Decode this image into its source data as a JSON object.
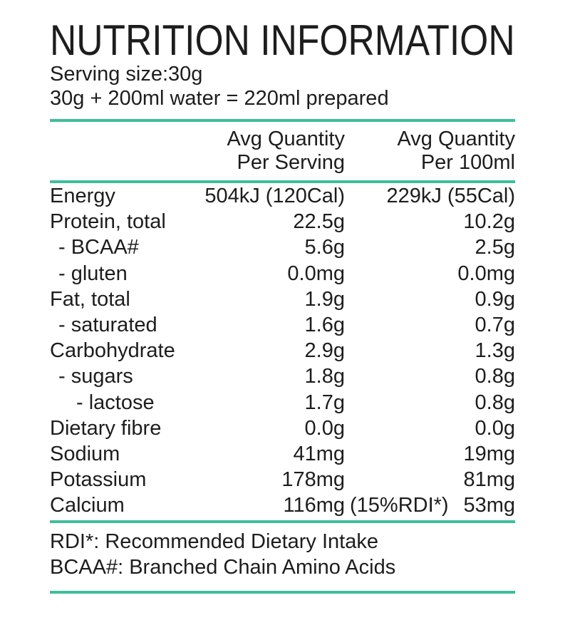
{
  "colors": {
    "accent": "#3FBE9A",
    "text": "#1D1D1D",
    "background": "#FFFFFF"
  },
  "header": {
    "title": "NUTRITION INFORMATION",
    "serving_size": "Serving size:30g",
    "preparation": "30g + 200ml water = 220ml prepared"
  },
  "table": {
    "columns": [
      {
        "line1": "Avg Quantity",
        "line2": "Per Serving"
      },
      {
        "line1": "Avg Quantity",
        "line2": "Per 100ml"
      }
    ],
    "rows": [
      {
        "label": "Energy",
        "indent": 0,
        "per_serving": "504kJ (120Cal)",
        "per_100ml": "229kJ (55Cal)"
      },
      {
        "label": "Protein, total",
        "indent": 0,
        "per_serving": "22.5g",
        "per_100ml": "10.2g"
      },
      {
        "label": "- BCAA#",
        "indent": 1,
        "per_serving": "5.6g",
        "per_100ml": "2.5g"
      },
      {
        "label": "- gluten",
        "indent": 1,
        "per_serving": "0.0mg",
        "per_100ml": "0.0mg"
      },
      {
        "label": "Fat, total",
        "indent": 0,
        "per_serving": "1.9g",
        "per_100ml": "0.9g"
      },
      {
        "label": "- saturated",
        "indent": 1,
        "per_serving": "1.6g",
        "per_100ml": "0.7g"
      },
      {
        "label": "Carbohydrate",
        "indent": 0,
        "per_serving": "2.9g",
        "per_100ml": "1.3g"
      },
      {
        "label": "- sugars",
        "indent": 1,
        "per_serving": "1.8g",
        "per_100ml": "0.8g"
      },
      {
        "label": "- lactose",
        "indent": 2,
        "per_serving": "1.7g",
        "per_100ml": "0.8g"
      },
      {
        "label": "Dietary fibre",
        "indent": 0,
        "per_serving": "0.0g",
        "per_100ml": "0.0g"
      },
      {
        "label": "Sodium",
        "indent": 0,
        "per_serving": "41mg",
        "per_100ml": "19mg"
      },
      {
        "label": "Potassium",
        "indent": 0,
        "per_serving": "178mg",
        "per_100ml": "81mg"
      },
      {
        "label": "Calcium",
        "indent": 0,
        "per_serving": "116mg",
        "per_serving_note": "(15%RDI*)",
        "per_100ml": "53mg"
      }
    ]
  },
  "footnotes": [
    "RDI*: Recommended Dietary Intake",
    "BCAA#: Branched Chain Amino Acids"
  ]
}
